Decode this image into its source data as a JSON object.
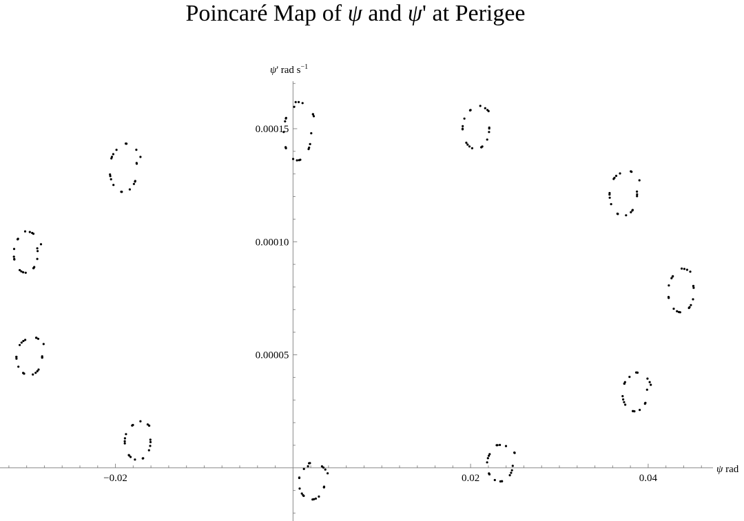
{
  "chart_data": {
    "type": "scatter",
    "title": {
      "text": "Poincaré Map of ψ and ψ' at Perigee",
      "parts": [
        {
          "t": "Poincaré Map of ",
          "italic": false
        },
        {
          "t": "ψ",
          "italic": true
        },
        {
          "t": " and ",
          "italic": false
        },
        {
          "t": "ψ",
          "italic": true
        },
        {
          "t": "' at Perigee",
          "italic": false
        }
      ]
    },
    "xlabel": {
      "sym": "ψ",
      "unit": " rad"
    },
    "ylabel": {
      "sym": "ψ",
      "rest": "' rad s",
      "sup": "−1"
    },
    "xlim": [
      -0.033,
      0.0473
    ],
    "ylim": [
      -2.35e-05,
      0.000171
    ],
    "x_ticks": [
      {
        "value": -0.02,
        "label": "−0.02"
      },
      {
        "value": 0.02,
        "label": "0.02"
      },
      {
        "value": 0.04,
        "label": "0.04"
      }
    ],
    "y_ticks": [
      {
        "value": 5e-05,
        "label": "0.00005"
      },
      {
        "value": 0.0001,
        "label": "0.00010"
      },
      {
        "value": 0.00015,
        "label": "0.00015"
      }
    ],
    "grid": false,
    "legend": "none",
    "marker_color": "#000000",
    "axis_color": "#888888",
    "islands": [
      {
        "cx": 0.0005,
        "cy": 0.000148,
        "rx": 0.00155,
        "ry": 1.2e-05,
        "open": true
      },
      {
        "cx": -0.0191,
        "cy": 0.000132,
        "rx": 0.00155,
        "ry": 1e-05,
        "open": true
      },
      {
        "cx": -0.0301,
        "cy": 9.48e-05,
        "rx": 0.00135,
        "ry": 8.5e-06,
        "open": true
      },
      {
        "cx": -0.0297,
        "cy": 4.9e-05,
        "rx": 0.00145,
        "ry": 8e-06,
        "open": true
      },
      {
        "cx": -0.0175,
        "cy": 1.15e-05,
        "rx": 0.00145,
        "ry": 8e-06,
        "open": true
      },
      {
        "cx": 0.0021,
        "cy": -6.5e-06,
        "rx": 0.00145,
        "ry": 7.5e-06,
        "open": true
      },
      {
        "cx": 0.0233,
        "cy": 1.5e-06,
        "rx": 0.00145,
        "ry": 7.5e-06,
        "open": true
      },
      {
        "cx": 0.0385,
        "cy": 3.3e-05,
        "rx": 0.0014,
        "ry": 8e-06,
        "open": true
      },
      {
        "cx": 0.0437,
        "cy": 7.78e-05,
        "rx": 0.00145,
        "ry": 9e-06,
        "open": true
      },
      {
        "cx": 0.0372,
        "cy": 0.000121,
        "rx": 0.00155,
        "ry": 9.5e-06,
        "open": true
      },
      {
        "cx": 0.0206,
        "cy": 0.00015,
        "rx": 0.0015,
        "ry": 9e-06,
        "open": true
      }
    ]
  }
}
